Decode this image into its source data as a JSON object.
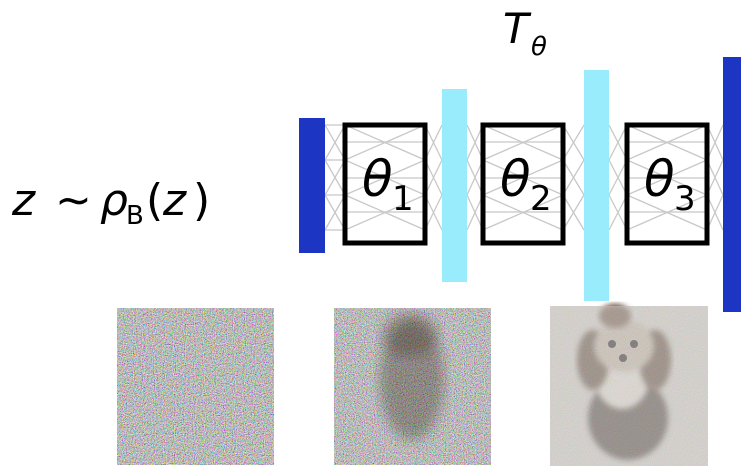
{
  "title": {
    "main": "T",
    "sub": "θ"
  },
  "input_label": {
    "var": "z",
    "op": "∼",
    "rho": "ρ",
    "sub": "B",
    "open": "(",
    "arg": "z",
    "close": ")"
  },
  "blocks": [
    {
      "symbol": "θ",
      "index": "1"
    },
    {
      "symbol": "θ",
      "index": "2"
    },
    {
      "symbol": "θ",
      "index": "3"
    }
  ],
  "colors": {
    "outer_bar": "#1c35c2",
    "inner_bar": "#99ecfb",
    "block_stroke": "#000000",
    "connection": "#c8c8c8"
  },
  "samples": [
    {
      "name": "noise-sample",
      "image": "pure noise"
    },
    {
      "name": "partial-sample",
      "image": "noisy dog silhouette"
    },
    {
      "name": "final-sample",
      "image": "dog"
    }
  ]
}
